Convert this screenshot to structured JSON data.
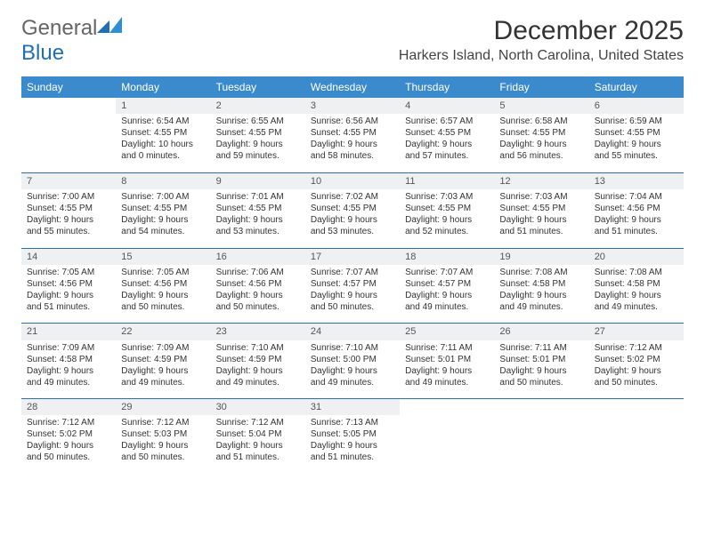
{
  "logo": {
    "general": "General",
    "blue": "Blue"
  },
  "title": "December 2025",
  "location": "Harkers Island, North Carolina, United States",
  "weekdays": [
    "Sunday",
    "Monday",
    "Tuesday",
    "Wednesday",
    "Thursday",
    "Friday",
    "Saturday"
  ],
  "weeks": [
    {
      "nums": [
        "",
        "1",
        "2",
        "3",
        "4",
        "5",
        "6"
      ],
      "cells": [
        [],
        [
          "Sunrise: 6:54 AM",
          "Sunset: 4:55 PM",
          "Daylight: 10 hours",
          "and 0 minutes."
        ],
        [
          "Sunrise: 6:55 AM",
          "Sunset: 4:55 PM",
          "Daylight: 9 hours",
          "and 59 minutes."
        ],
        [
          "Sunrise: 6:56 AM",
          "Sunset: 4:55 PM",
          "Daylight: 9 hours",
          "and 58 minutes."
        ],
        [
          "Sunrise: 6:57 AM",
          "Sunset: 4:55 PM",
          "Daylight: 9 hours",
          "and 57 minutes."
        ],
        [
          "Sunrise: 6:58 AM",
          "Sunset: 4:55 PM",
          "Daylight: 9 hours",
          "and 56 minutes."
        ],
        [
          "Sunrise: 6:59 AM",
          "Sunset: 4:55 PM",
          "Daylight: 9 hours",
          "and 55 minutes."
        ]
      ]
    },
    {
      "nums": [
        "7",
        "8",
        "9",
        "10",
        "11",
        "12",
        "13"
      ],
      "cells": [
        [
          "Sunrise: 7:00 AM",
          "Sunset: 4:55 PM",
          "Daylight: 9 hours",
          "and 55 minutes."
        ],
        [
          "Sunrise: 7:00 AM",
          "Sunset: 4:55 PM",
          "Daylight: 9 hours",
          "and 54 minutes."
        ],
        [
          "Sunrise: 7:01 AM",
          "Sunset: 4:55 PM",
          "Daylight: 9 hours",
          "and 53 minutes."
        ],
        [
          "Sunrise: 7:02 AM",
          "Sunset: 4:55 PM",
          "Daylight: 9 hours",
          "and 53 minutes."
        ],
        [
          "Sunrise: 7:03 AM",
          "Sunset: 4:55 PM",
          "Daylight: 9 hours",
          "and 52 minutes."
        ],
        [
          "Sunrise: 7:03 AM",
          "Sunset: 4:55 PM",
          "Daylight: 9 hours",
          "and 51 minutes."
        ],
        [
          "Sunrise: 7:04 AM",
          "Sunset: 4:56 PM",
          "Daylight: 9 hours",
          "and 51 minutes."
        ]
      ]
    },
    {
      "nums": [
        "14",
        "15",
        "16",
        "17",
        "18",
        "19",
        "20"
      ],
      "cells": [
        [
          "Sunrise: 7:05 AM",
          "Sunset: 4:56 PM",
          "Daylight: 9 hours",
          "and 51 minutes."
        ],
        [
          "Sunrise: 7:05 AM",
          "Sunset: 4:56 PM",
          "Daylight: 9 hours",
          "and 50 minutes."
        ],
        [
          "Sunrise: 7:06 AM",
          "Sunset: 4:56 PM",
          "Daylight: 9 hours",
          "and 50 minutes."
        ],
        [
          "Sunrise: 7:07 AM",
          "Sunset: 4:57 PM",
          "Daylight: 9 hours",
          "and 50 minutes."
        ],
        [
          "Sunrise: 7:07 AM",
          "Sunset: 4:57 PM",
          "Daylight: 9 hours",
          "and 49 minutes."
        ],
        [
          "Sunrise: 7:08 AM",
          "Sunset: 4:58 PM",
          "Daylight: 9 hours",
          "and 49 minutes."
        ],
        [
          "Sunrise: 7:08 AM",
          "Sunset: 4:58 PM",
          "Daylight: 9 hours",
          "and 49 minutes."
        ]
      ]
    },
    {
      "nums": [
        "21",
        "22",
        "23",
        "24",
        "25",
        "26",
        "27"
      ],
      "cells": [
        [
          "Sunrise: 7:09 AM",
          "Sunset: 4:58 PM",
          "Daylight: 9 hours",
          "and 49 minutes."
        ],
        [
          "Sunrise: 7:09 AM",
          "Sunset: 4:59 PM",
          "Daylight: 9 hours",
          "and 49 minutes."
        ],
        [
          "Sunrise: 7:10 AM",
          "Sunset: 4:59 PM",
          "Daylight: 9 hours",
          "and 49 minutes."
        ],
        [
          "Sunrise: 7:10 AM",
          "Sunset: 5:00 PM",
          "Daylight: 9 hours",
          "and 49 minutes."
        ],
        [
          "Sunrise: 7:11 AM",
          "Sunset: 5:01 PM",
          "Daylight: 9 hours",
          "and 49 minutes."
        ],
        [
          "Sunrise: 7:11 AM",
          "Sunset: 5:01 PM",
          "Daylight: 9 hours",
          "and 50 minutes."
        ],
        [
          "Sunrise: 7:12 AM",
          "Sunset: 5:02 PM",
          "Daylight: 9 hours",
          "and 50 minutes."
        ]
      ]
    },
    {
      "nums": [
        "28",
        "29",
        "30",
        "31",
        "",
        "",
        ""
      ],
      "cells": [
        [
          "Sunrise: 7:12 AM",
          "Sunset: 5:02 PM",
          "Daylight: 9 hours",
          "and 50 minutes."
        ],
        [
          "Sunrise: 7:12 AM",
          "Sunset: 5:03 PM",
          "Daylight: 9 hours",
          "and 50 minutes."
        ],
        [
          "Sunrise: 7:12 AM",
          "Sunset: 5:04 PM",
          "Daylight: 9 hours",
          "and 51 minutes."
        ],
        [
          "Sunrise: 7:13 AM",
          "Sunset: 5:05 PM",
          "Daylight: 9 hours",
          "and 51 minutes."
        ],
        [],
        [],
        []
      ]
    }
  ],
  "colors": {
    "header_bg": "#3b8acb",
    "header_text": "#ffffff",
    "daynum_bg": "#eef0f1",
    "rule": "#2f6fa8"
  }
}
